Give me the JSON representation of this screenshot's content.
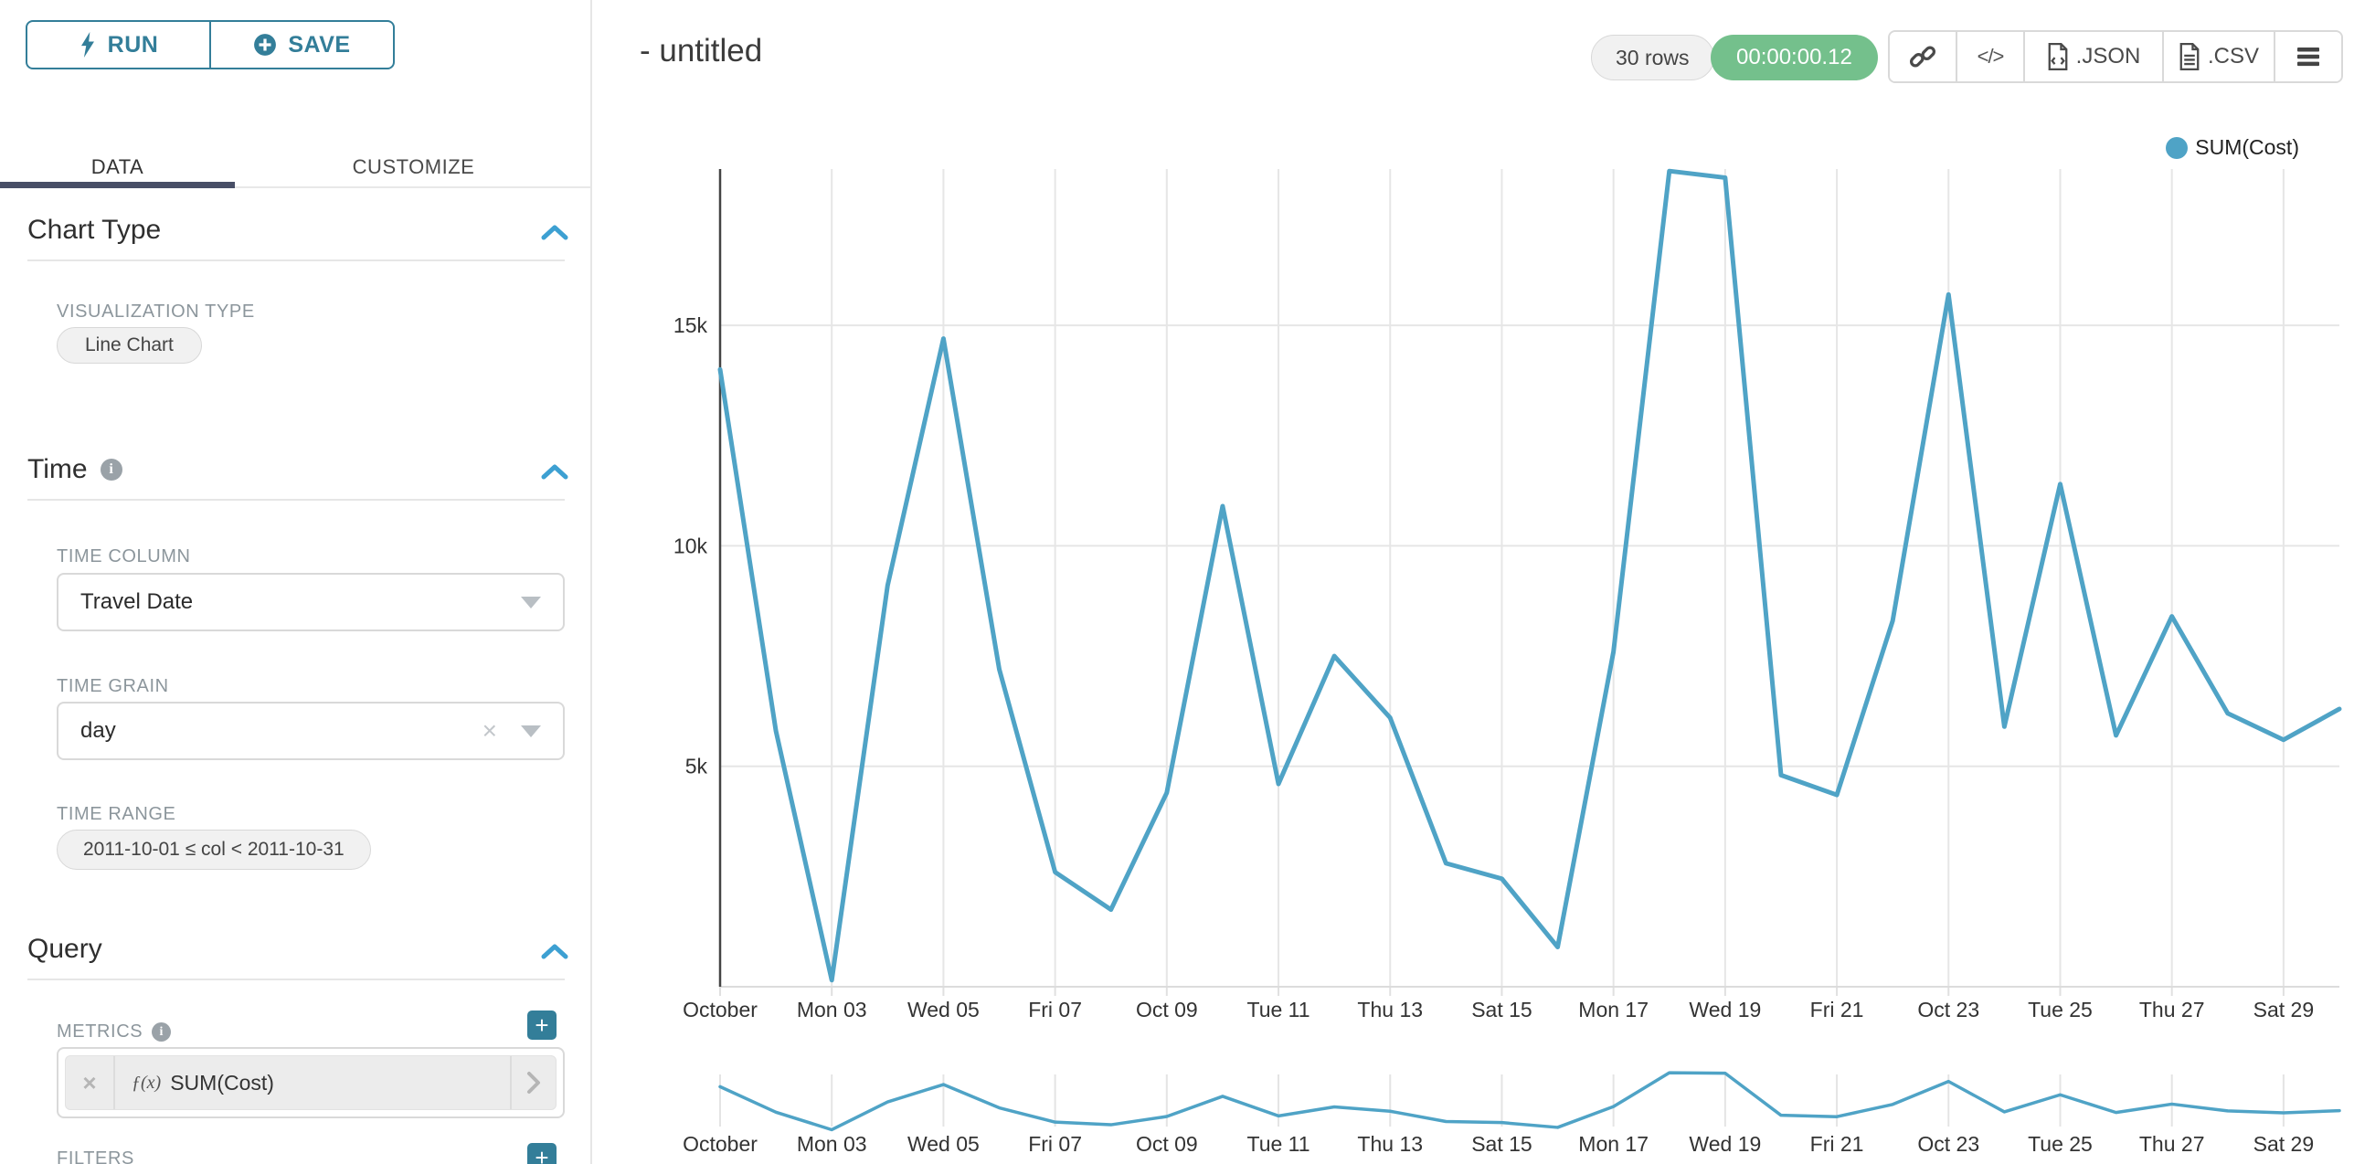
{
  "colors": {
    "accent_teal": "#337e99",
    "chevron_blue": "#3da0d2",
    "tab_underline": "#484e66",
    "timer_green": "#74c08c",
    "line_color": "#4fa3c6",
    "grid_color": "#e6e6e6",
    "axis_color": "#444444"
  },
  "sidebar": {
    "run_label": "RUN",
    "save_label": "SAVE",
    "tabs": {
      "data": "DATA",
      "customize": "CUSTOMIZE"
    },
    "chart_type": {
      "title": "Chart Type",
      "viz_type_label": "VISUALIZATION TYPE",
      "viz_type_value": "Line Chart"
    },
    "time": {
      "title": "Time",
      "time_column_label": "TIME COLUMN",
      "time_column_value": "Travel Date",
      "time_grain_label": "TIME GRAIN",
      "time_grain_value": "day",
      "time_range_label": "TIME RANGE",
      "time_range_value": "2011-10-01 ≤ col < 2011-10-31"
    },
    "query": {
      "title": "Query",
      "metrics_label": "METRICS",
      "metric_fx": "ƒ(x)",
      "metric_value": "SUM(Cost)",
      "filters_label": "FILTERS"
    }
  },
  "header": {
    "title": "- untitled",
    "rows_badge": "30 rows",
    "timer_badge": "00:00:00.12",
    "json_label": ".JSON",
    "csv_label": ".CSV"
  },
  "legend": {
    "label": "SUM(Cost)",
    "color": "#4fa3c6"
  },
  "chart_data": {
    "type": "line",
    "title": "",
    "xlabel": "",
    "ylabel": "",
    "legend_position": "top-right",
    "grid": true,
    "ylim": [
      0,
      18560
    ],
    "y_ticks": [
      5000,
      10000,
      15000
    ],
    "y_tick_labels": [
      "5k",
      "10k",
      "15k"
    ],
    "x_tick_labels": [
      "October",
      "Mon 03",
      "Wed 05",
      "Fri 07",
      "Oct 09",
      "Tue 11",
      "Thu 13",
      "Sat 15",
      "Mon 17",
      "Wed 19",
      "Fri 21",
      "Oct 23",
      "Tue 25",
      "Thu 27",
      "Sat 29"
    ],
    "series": [
      {
        "name": "SUM(Cost)",
        "x": [
          "2011-10-01",
          "2011-10-02",
          "2011-10-03",
          "2011-10-04",
          "2011-10-05",
          "2011-10-06",
          "2011-10-07",
          "2011-10-08",
          "2011-10-09",
          "2011-10-10",
          "2011-10-11",
          "2011-10-12",
          "2011-10-13",
          "2011-10-14",
          "2011-10-15",
          "2011-10-16",
          "2011-10-17",
          "2011-10-18",
          "2011-10-19",
          "2011-10-20",
          "2011-10-21",
          "2011-10-22",
          "2011-10-23",
          "2011-10-24",
          "2011-10-25",
          "2011-10-26",
          "2011-10-27",
          "2011-10-28",
          "2011-10-29",
          "2011-10-30"
        ],
        "values": [
          14000,
          5800,
          150,
          9100,
          14700,
          7200,
          2600,
          1750,
          4400,
          10900,
          4600,
          7500,
          6100,
          2800,
          2450,
          900,
          7600,
          18500,
          18350,
          4800,
          4350,
          8300,
          15700,
          5900,
          11400,
          5700,
          8400,
          6200,
          5600,
          6300
        ]
      }
    ],
    "has_context_brush_chart": true
  }
}
